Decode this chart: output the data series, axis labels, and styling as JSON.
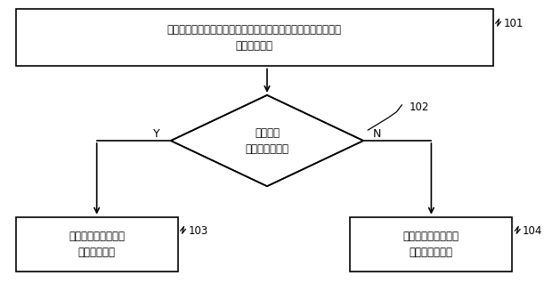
{
  "bg_color": "#ffffff",
  "border_color": "#000000",
  "arrow_color": "#000000",
  "text_color": "#000000",
  "box101_text": "确定空调室内机的实时内机风速，将实时内机风速与第一设定风\n速阈值作比较",
  "box101_label": "101",
  "diamond102_text": "小于第一\n设定风速阈值？",
  "diamond102_label": "102",
  "box103_text": "控制压缩机的绕组为\n星形连接方式",
  "box103_label": "103",
  "box104_text": "控制压缩机的绕组为\n三角形连接方式",
  "box104_label": "104",
  "label_Y": "Y",
  "label_N": "N",
  "figsize": [
    6.11,
    3.19
  ],
  "dpi": 100
}
